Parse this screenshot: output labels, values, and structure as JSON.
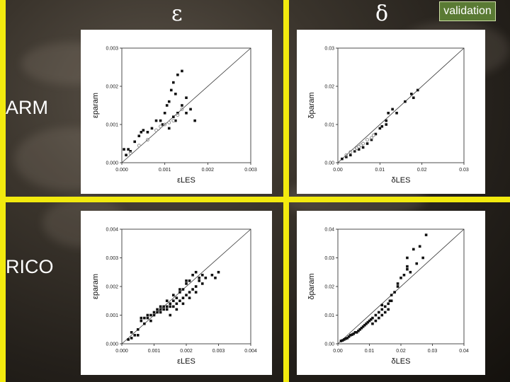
{
  "header": {
    "epsilon_symbol": "ε",
    "delta_symbol": "δ",
    "badge": "validation"
  },
  "rows": {
    "arm": "ARM",
    "rico": "RICO"
  },
  "colors": {
    "divider": "#f2ea0e",
    "badge": "#5a7a34",
    "panel": "#ffffff"
  },
  "chart_data": [
    {
      "id": "arm-eps",
      "type": "scatter",
      "xlabel": "εLES",
      "ylabel": "εparam",
      "xlim": [
        0,
        0.003
      ],
      "ylim": [
        0,
        0.003
      ],
      "xticks": [
        "0.000",
        "0.001",
        "0.002",
        "0.003"
      ],
      "yticks": [
        "0.000",
        "0.001",
        "0.002",
        "0.003"
      ],
      "series": [
        {
          "values": [
            [
              5e-05,
              0.00035
            ],
            [
              0.0001,
              0.0002
            ],
            [
              0.00015,
              0.00035
            ],
            [
              0.0002,
              0.0003
            ],
            [
              0.0003,
              0.00055
            ],
            [
              0.0004,
              0.0007
            ],
            [
              0.00045,
              0.0008
            ],
            [
              0.0005,
              0.00085
            ],
            [
              0.0006,
              0.0008
            ],
            [
              0.0007,
              0.0009
            ],
            [
              0.0008,
              0.0011
            ],
            [
              0.0009,
              0.0011
            ],
            [
              0.001,
              0.0013
            ],
            [
              0.00105,
              0.0015
            ],
            [
              0.0011,
              0.0016
            ],
            [
              0.0012,
              0.0012
            ],
            [
              0.00125,
              0.0011
            ],
            [
              0.0013,
              0.0013
            ],
            [
              0.0014,
              0.0015
            ],
            [
              0.0015,
              0.0017
            ],
            [
              0.00115,
              0.0019
            ],
            [
              0.0012,
              0.0021
            ],
            [
              0.00125,
              0.0018
            ],
            [
              0.0013,
              0.0023
            ],
            [
              0.0014,
              0.0024
            ],
            [
              0.0015,
              0.0013
            ],
            [
              0.0016,
              0.0014
            ],
            [
              0.0011,
              0.0009
            ],
            [
              0.00095,
              0.001
            ],
            [
              0.0017,
              0.0011
            ]
          ]
        },
        {
          "values": [
            [
              0.0002,
              0.00025
            ],
            [
              0.0004,
              0.00045
            ],
            [
              0.0006,
              0.0006
            ],
            [
              0.0008,
              0.00085
            ],
            [
              0.001,
              0.001
            ],
            [
              0.0012,
              0.0011
            ],
            [
              0.0013,
              0.00125
            ],
            [
              0.0014,
              0.0014
            ],
            [
              0.0011,
              0.00105
            ],
            [
              0.0009,
              0.00095
            ]
          ]
        }
      ]
    },
    {
      "id": "arm-del",
      "type": "scatter",
      "xlabel": "δLES",
      "ylabel": "δparam",
      "xlim": [
        0,
        0.03
      ],
      "ylim": [
        0,
        0.03
      ],
      "xticks": [
        "0.00",
        "0.01",
        "0.02",
        "0.03"
      ],
      "yticks": [
        "0.00",
        "0.01",
        "0.02",
        "0.03"
      ],
      "series": [
        {
          "values": [
            [
              0.001,
              0.001
            ],
            [
              0.002,
              0.0015
            ],
            [
              0.003,
              0.002
            ],
            [
              0.004,
              0.003
            ],
            [
              0.005,
              0.0035
            ],
            [
              0.006,
              0.004
            ],
            [
              0.007,
              0.005
            ],
            [
              0.008,
              0.006
            ],
            [
              0.009,
              0.0075
            ],
            [
              0.01,
              0.009
            ],
            [
              0.0115,
              0.011
            ],
            [
              0.012,
              0.013
            ],
            [
              0.013,
              0.014
            ],
            [
              0.014,
              0.013
            ],
            [
              0.016,
              0.016
            ],
            [
              0.018,
              0.017
            ],
            [
              0.019,
              0.019
            ],
            [
              0.0175,
              0.018
            ],
            [
              0.0115,
              0.01
            ],
            [
              0.0105,
              0.0095
            ]
          ]
        },
        {
          "values": [
            [
              0.002,
              0.002
            ],
            [
              0.003,
              0.0028
            ],
            [
              0.004,
              0.0035
            ],
            [
              0.005,
              0.0042
            ],
            [
              0.006,
              0.005
            ],
            [
              0.007,
              0.006
            ],
            [
              0.008,
              0.0065
            ],
            [
              0.0085,
              0.0072
            ],
            [
              0.0045,
              0.0038
            ],
            [
              0.0055,
              0.0046
            ]
          ]
        }
      ]
    },
    {
      "id": "rico-eps",
      "type": "scatter",
      "xlabel": "εLES",
      "ylabel": "εparam",
      "xlim": [
        0,
        0.004
      ],
      "ylim": [
        0,
        0.004
      ],
      "xticks": [
        "0.000",
        "0.001",
        "0.002",
        "0.003",
        "0.004"
      ],
      "yticks": [
        "0.000",
        "0.001",
        "0.002",
        "0.003",
        "0.004"
      ],
      "series": [
        {
          "values": [
            [
              0.0002,
              0.00015
            ],
            [
              0.0003,
              0.0004
            ],
            [
              0.0004,
              0.0003
            ],
            [
              0.0005,
              0.0005
            ],
            [
              0.0006,
              0.0008
            ],
            [
              0.0007,
              0.0007
            ],
            [
              0.0008,
              0.0009
            ],
            [
              0.0009,
              0.0008
            ],
            [
              0.001,
              0.001
            ],
            [
              0.0011,
              0.0011
            ],
            [
              0.0012,
              0.0011
            ],
            [
              0.0013,
              0.0012
            ],
            [
              0.0014,
              0.0012
            ],
            [
              0.0015,
              0.0013
            ],
            [
              0.0016,
              0.0013
            ],
            [
              0.0017,
              0.0014
            ],
            [
              0.0018,
              0.0015
            ],
            [
              0.0019,
              0.0016
            ],
            [
              0.002,
              0.0017
            ],
            [
              0.0021,
              0.0018
            ],
            [
              0.0022,
              0.0019
            ],
            [
              0.0023,
              0.002
            ],
            [
              0.0024,
              0.0022
            ],
            [
              0.0025,
              0.0024
            ],
            [
              0.0023,
              0.0025
            ],
            [
              0.0021,
              0.0022
            ],
            [
              0.002,
              0.0021
            ],
            [
              0.0019,
              0.0019
            ],
            [
              0.0018,
              0.0018
            ],
            [
              0.0017,
              0.0016
            ],
            [
              0.0016,
              0.0015
            ],
            [
              0.0015,
              0.0014
            ],
            [
              0.0014,
              0.0013
            ],
            [
              0.0013,
              0.0013
            ],
            [
              0.0012,
              0.0012
            ],
            [
              0.0011,
              0.0012
            ],
            [
              0.001,
              0.0011
            ],
            [
              0.0009,
              0.001
            ],
            [
              0.0008,
              0.001
            ],
            [
              0.0007,
              0.0009
            ],
            [
              0.0006,
              0.0009
            ],
            [
              0.0012,
              0.0013
            ],
            [
              0.0014,
              0.0015
            ],
            [
              0.0016,
              0.0017
            ],
            [
              0.0018,
              0.0019
            ],
            [
              0.002,
              0.0022
            ],
            [
              0.0022,
              0.0024
            ],
            [
              0.0024,
              0.0023
            ],
            [
              0.0025,
              0.0021
            ],
            [
              0.0026,
              0.0023
            ],
            [
              0.0028,
              0.0024
            ],
            [
              0.0029,
              0.0023
            ],
            [
              0.003,
              0.0025
            ],
            [
              0.0005,
              0.0003
            ],
            [
              0.0003,
              0.0002
            ],
            [
              0.0015,
              0.001
            ],
            [
              0.0017,
              0.0012
            ],
            [
              0.0019,
              0.0014
            ],
            [
              0.0021,
              0.0016
            ],
            [
              0.0023,
              0.0018
            ]
          ]
        }
      ]
    },
    {
      "id": "rico-del",
      "type": "scatter",
      "xlabel": "δLES",
      "ylabel": "δparam",
      "xlim": [
        0,
        0.04
      ],
      "ylim": [
        0,
        0.04
      ],
      "xticks": [
        "0.00",
        "0.01",
        "0.02",
        "0.03",
        "0.04"
      ],
      "yticks": [
        "0.00",
        "0.01",
        "0.02",
        "0.03",
        "0.04"
      ],
      "series": [
        {
          "values": [
            [
              0.001,
              0.001
            ],
            [
              0.002,
              0.0015
            ],
            [
              0.003,
              0.002
            ],
            [
              0.004,
              0.003
            ],
            [
              0.005,
              0.0035
            ],
            [
              0.006,
              0.004
            ],
            [
              0.007,
              0.005
            ],
            [
              0.008,
              0.006
            ],
            [
              0.009,
              0.007
            ],
            [
              0.01,
              0.008
            ],
            [
              0.011,
              0.009
            ],
            [
              0.012,
              0.01
            ],
            [
              0.013,
              0.011
            ],
            [
              0.014,
              0.012
            ],
            [
              0.015,
              0.013
            ],
            [
              0.016,
              0.014
            ],
            [
              0.017,
              0.015
            ],
            [
              0.016,
              0.012
            ],
            [
              0.015,
              0.011
            ],
            [
              0.014,
              0.01
            ],
            [
              0.013,
              0.009
            ],
            [
              0.012,
              0.008
            ],
            [
              0.011,
              0.007
            ],
            [
              0.0105,
              0.0085
            ],
            [
              0.0095,
              0.0075
            ],
            [
              0.0085,
              0.0065
            ],
            [
              0.0075,
              0.0055
            ],
            [
              0.0065,
              0.0045
            ],
            [
              0.0055,
              0.004
            ],
            [
              0.0045,
              0.0032
            ],
            [
              0.0035,
              0.0025
            ],
            [
              0.0025,
              0.0018
            ],
            [
              0.0015,
              0.0012
            ],
            [
              0.018,
              0.018
            ],
            [
              0.019,
              0.021
            ],
            [
              0.02,
              0.023
            ],
            [
              0.021,
              0.024
            ],
            [
              0.022,
              0.026
            ],
            [
              0.023,
              0.025
            ],
            [
              0.022,
              0.03
            ],
            [
              0.024,
              0.033
            ],
            [
              0.026,
              0.034
            ],
            [
              0.025,
              0.028
            ],
            [
              0.027,
              0.03
            ],
            [
              0.028,
              0.038
            ],
            [
              0.022,
              0.027
            ],
            [
              0.019,
              0.02
            ],
            [
              0.017,
              0.017
            ],
            [
              0.0165,
              0.015
            ],
            [
              0.014,
              0.0135
            ]
          ]
        }
      ]
    }
  ]
}
